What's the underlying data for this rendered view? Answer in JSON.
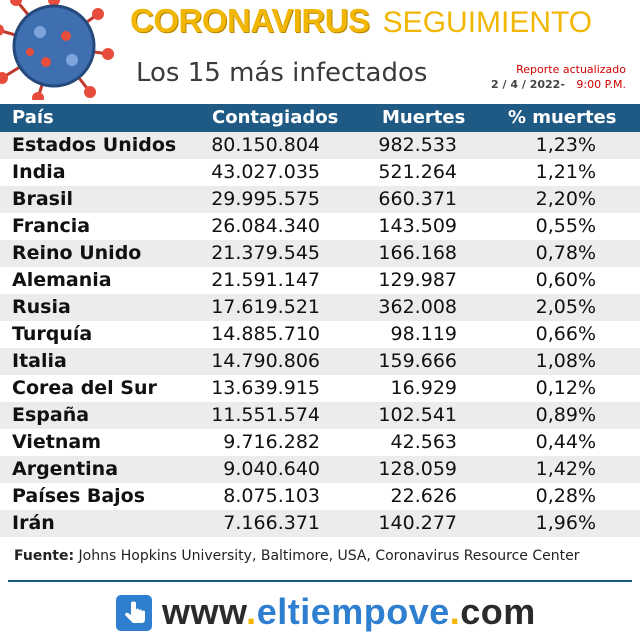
{
  "header": {
    "title_main": "CORONAVIRUS",
    "title_sub": "SEGUIMIENTO",
    "subtitle": "Los 15 más infectados",
    "report_label": "Reporte actualizado",
    "report_date": "2 / 4 / 2022-",
    "report_time": "9:00 P.M."
  },
  "table": {
    "headers": [
      "País",
      "Contagiados",
      "Muertes",
      "% muertes"
    ],
    "rows": [
      {
        "country": "Estados Unidos",
        "cases": "80.150.804",
        "deaths": "982.533",
        "pct": "1,23%"
      },
      {
        "country": "India",
        "cases": "43.027.035",
        "deaths": "521.264",
        "pct": "1,21%"
      },
      {
        "country": "Brasil",
        "cases": "29.995.575",
        "deaths": "660.371",
        "pct": "2,20%"
      },
      {
        "country": "Francia",
        "cases": "26.084.340",
        "deaths": "143.509",
        "pct": "0,55%"
      },
      {
        "country": "Reino Unido",
        "cases": "21.379.545",
        "deaths": "166.168",
        "pct": "0,78%"
      },
      {
        "country": "Alemania",
        "cases": "21.591.147",
        "deaths": "129.987",
        "pct": "0,60%"
      },
      {
        "country": "Rusia",
        "cases": "17.619.521",
        "deaths": "362.008",
        "pct": "2,05%"
      },
      {
        "country": "Turquía",
        "cases": "14.885.710",
        "deaths": "98.119",
        "pct": "0,66%"
      },
      {
        "country": "Italia",
        "cases": "14.790.806",
        "deaths": "159.666",
        "pct": "1,08%"
      },
      {
        "country": "Corea del Sur",
        "cases": "13.639.915",
        "deaths": "16.929",
        "pct": "0,12%"
      },
      {
        "country": "España",
        "cases": "11.551.574",
        "deaths": "102.541",
        "pct": "0,89%"
      },
      {
        "country": "Vietnam",
        "cases": "9.716.282",
        "deaths": "42.563",
        "pct": "0,44%"
      },
      {
        "country": "Argentina",
        "cases": "9.040.640",
        "deaths": "128.059",
        "pct": "1,42%"
      },
      {
        "country": "Países Bajos",
        "cases": "8.075.103",
        "deaths": "22.626",
        "pct": "0,28%"
      },
      {
        "country": "Irán",
        "cases": "7.166.371",
        "deaths": "140.277",
        "pct": "1,96%"
      }
    ]
  },
  "footer": {
    "source_label": "Fuente:",
    "source_text": "Johns Hopkins University, Baltimore, USA, Coronavirus Resource Center",
    "web_prefix": "www",
    "web_brand": "eltiempove",
    "web_suffix": "com",
    "web_dot": "."
  },
  "icons": {
    "virus": "coronavirus-icon",
    "web": "hand-pointer-icon"
  },
  "colors": {
    "accent": "#f2b705",
    "header_bg": "#1f5a84",
    "alert": "#d00000",
    "brand": "#2f7fd1"
  }
}
